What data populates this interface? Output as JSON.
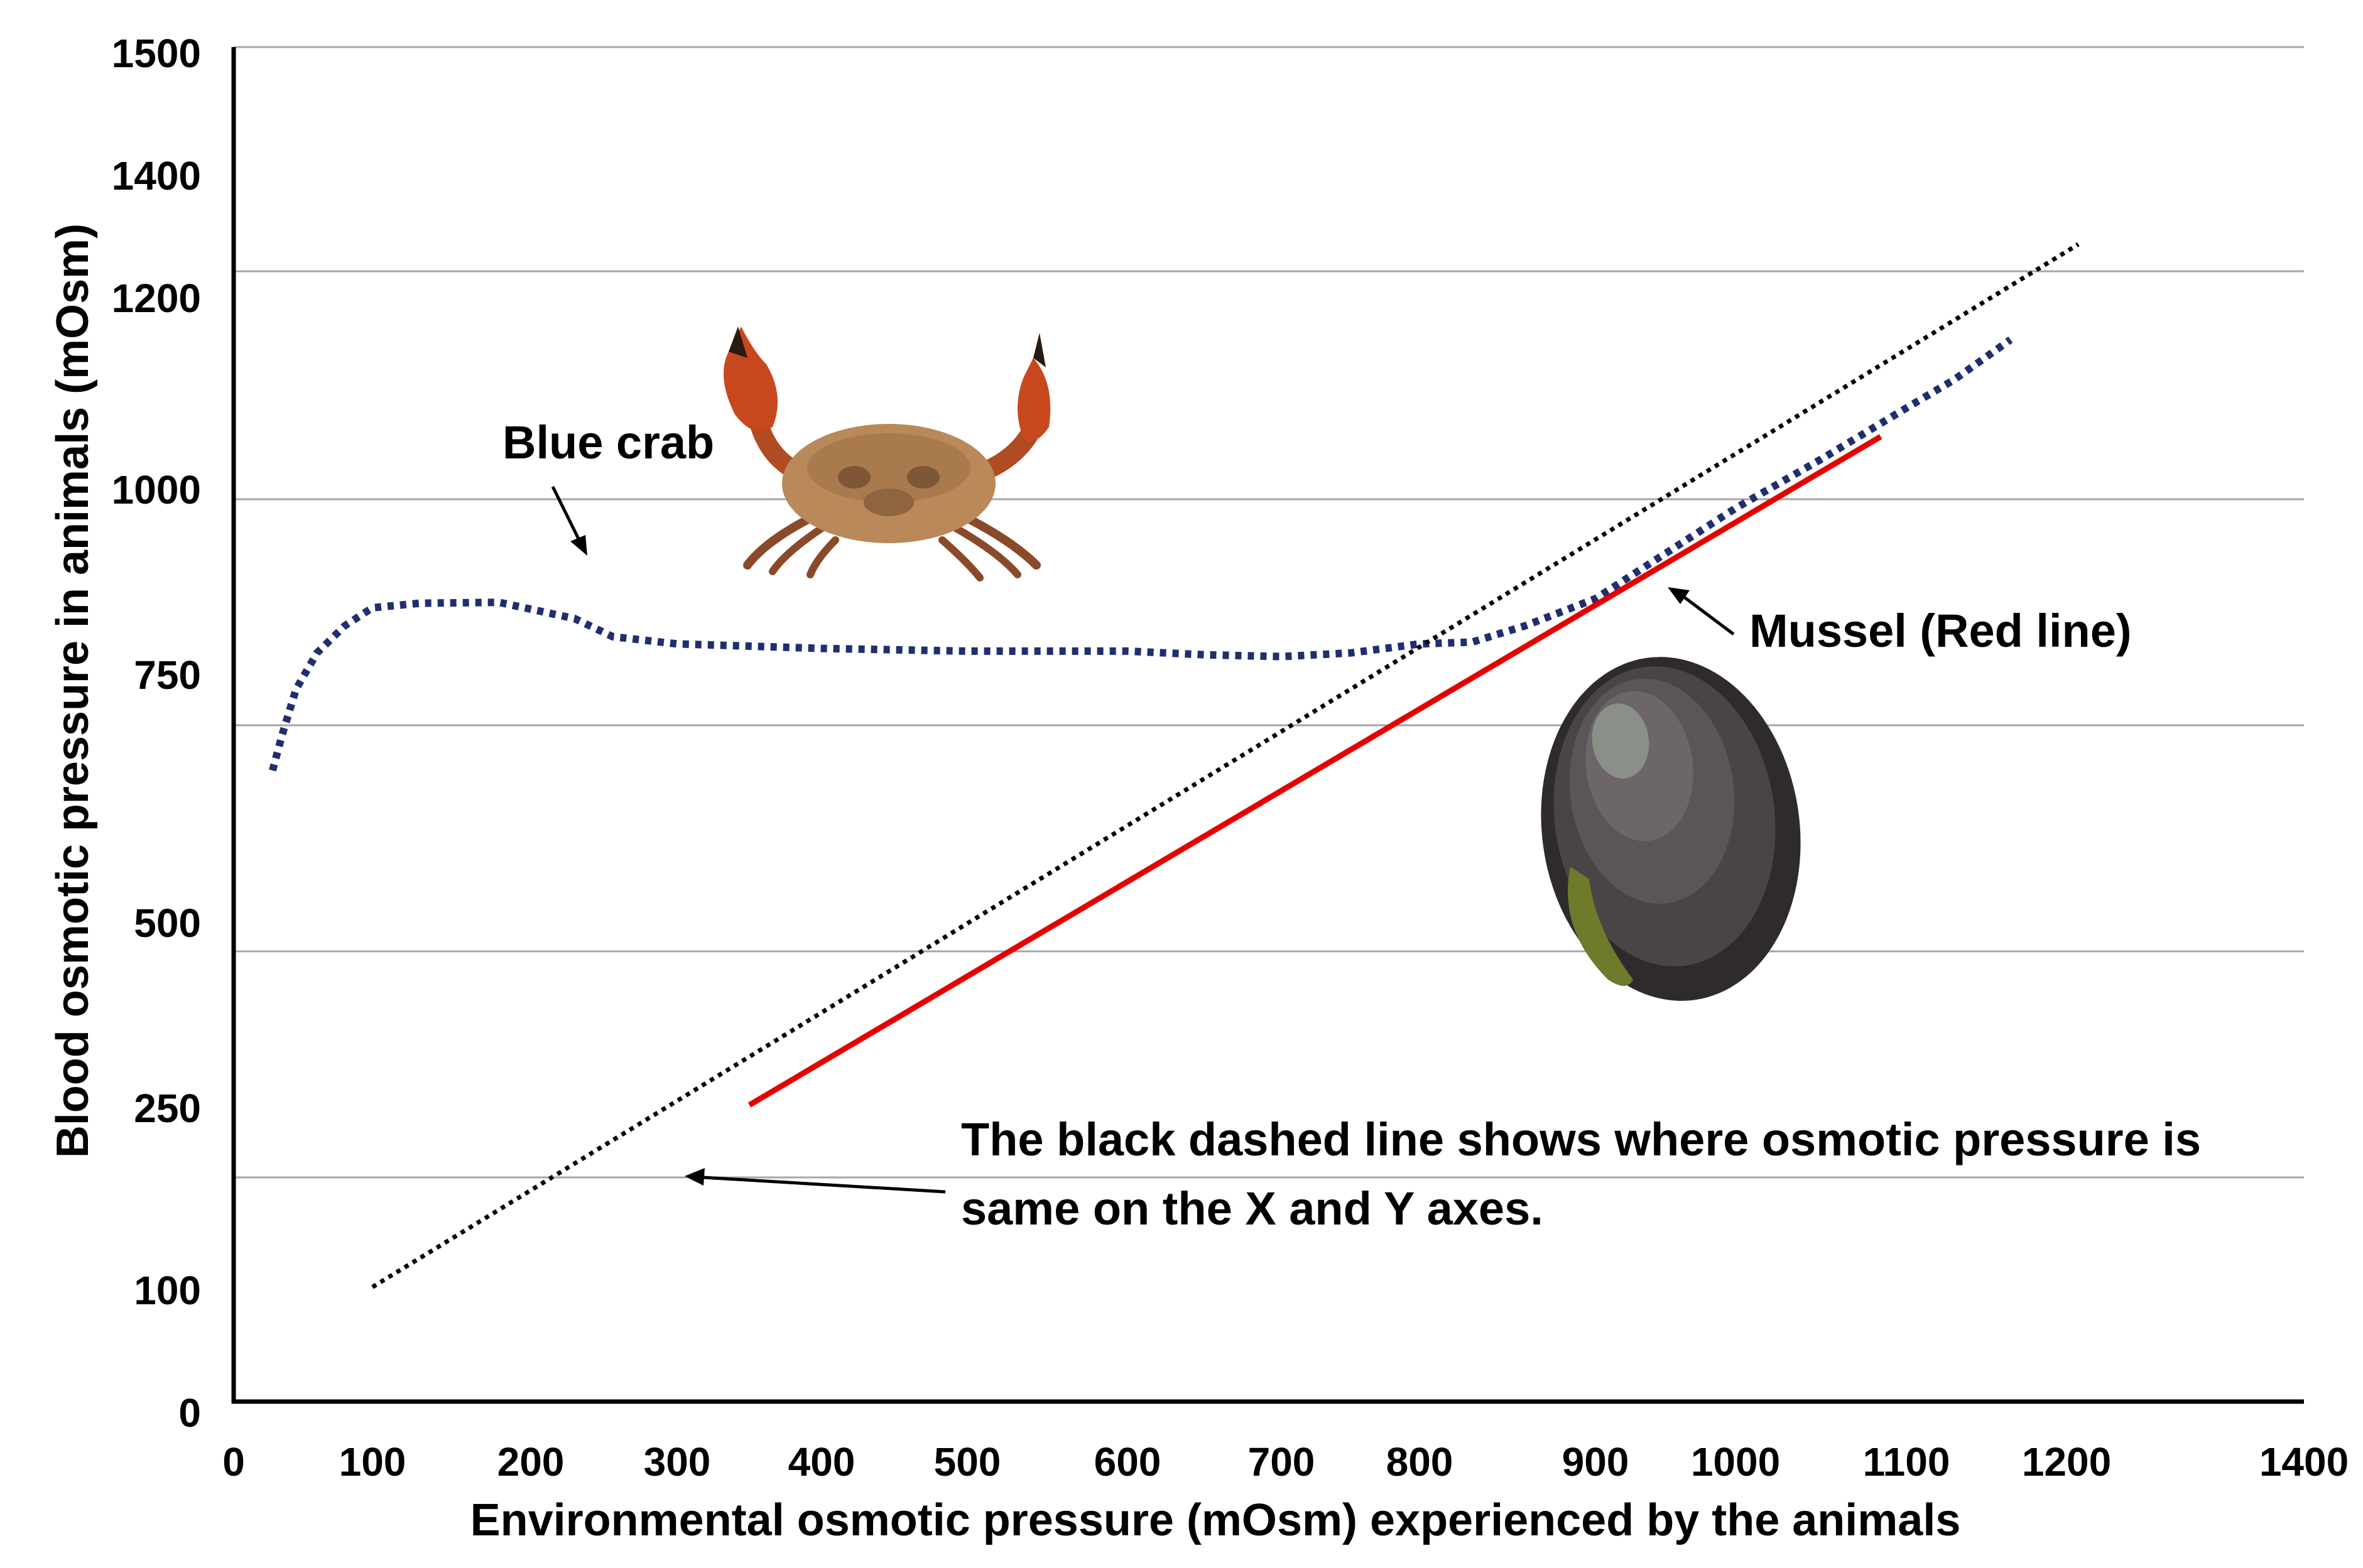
{
  "chart_data": {
    "type": "line",
    "title": "",
    "xlabel": "Environmental osmotic pressure  (mOsm) experienced by the animals",
    "ylabel": "Blood osmotic pressure in animals (mOsm)",
    "xlim": [
      0,
      1400
    ],
    "x_ticks": [
      "0",
      "100",
      "200",
      "300",
      "400",
      "500",
      "600",
      "700",
      "800",
      "900",
      "1000",
      "1100",
      "1200",
      "1400"
    ],
    "y_ticks": [
      "0",
      "100",
      "250",
      "500",
      "750",
      "1000",
      "1200",
      "1400",
      "1500"
    ],
    "series": [
      {
        "name": "Blue crab",
        "color": "#1f2f6e",
        "style": "dotted",
        "points": [
          [
            28,
            700
          ],
          [
            35,
            740
          ],
          [
            45,
            790
          ],
          [
            60,
            830
          ],
          [
            80,
            860
          ],
          [
            100,
            880
          ],
          [
            130,
            885
          ],
          [
            180,
            886
          ],
          [
            230,
            868
          ],
          [
            256,
            848
          ],
          [
            300,
            840
          ],
          [
            400,
            835
          ],
          [
            500,
            832
          ],
          [
            600,
            832
          ],
          [
            650,
            828
          ],
          [
            700,
            826
          ],
          [
            750,
            830
          ],
          [
            800,
            840
          ],
          [
            830,
            842
          ],
          [
            860,
            860
          ],
          [
            900,
            890
          ],
          [
            950,
            940
          ],
          [
            1000,
            990
          ],
          [
            1050,
            1035
          ],
          [
            1100,
            1080
          ],
          [
            1130,
            1105
          ],
          [
            1165,
            1140
          ]
        ]
      },
      {
        "name": "Mussel (Red line)",
        "color": "#e60000",
        "style": "solid",
        "points": [
          [
            350,
            330
          ],
          [
            1085,
            1055
          ]
        ]
      },
      {
        "name": "Equal osmotic pressure (X = Y)",
        "color": "#000000",
        "style": "dotted",
        "points": [
          [
            100,
            95
          ],
          [
            1210,
            1250
          ]
        ]
      }
    ],
    "annotations": {
      "blue_crab": "Blue crab",
      "mussel": "Mussel (Red line)",
      "black_line_line1": "The black dashed line shows where osmotic pressure is",
      "black_line_line2": "same on the X and Y axes."
    },
    "grid": true
  }
}
